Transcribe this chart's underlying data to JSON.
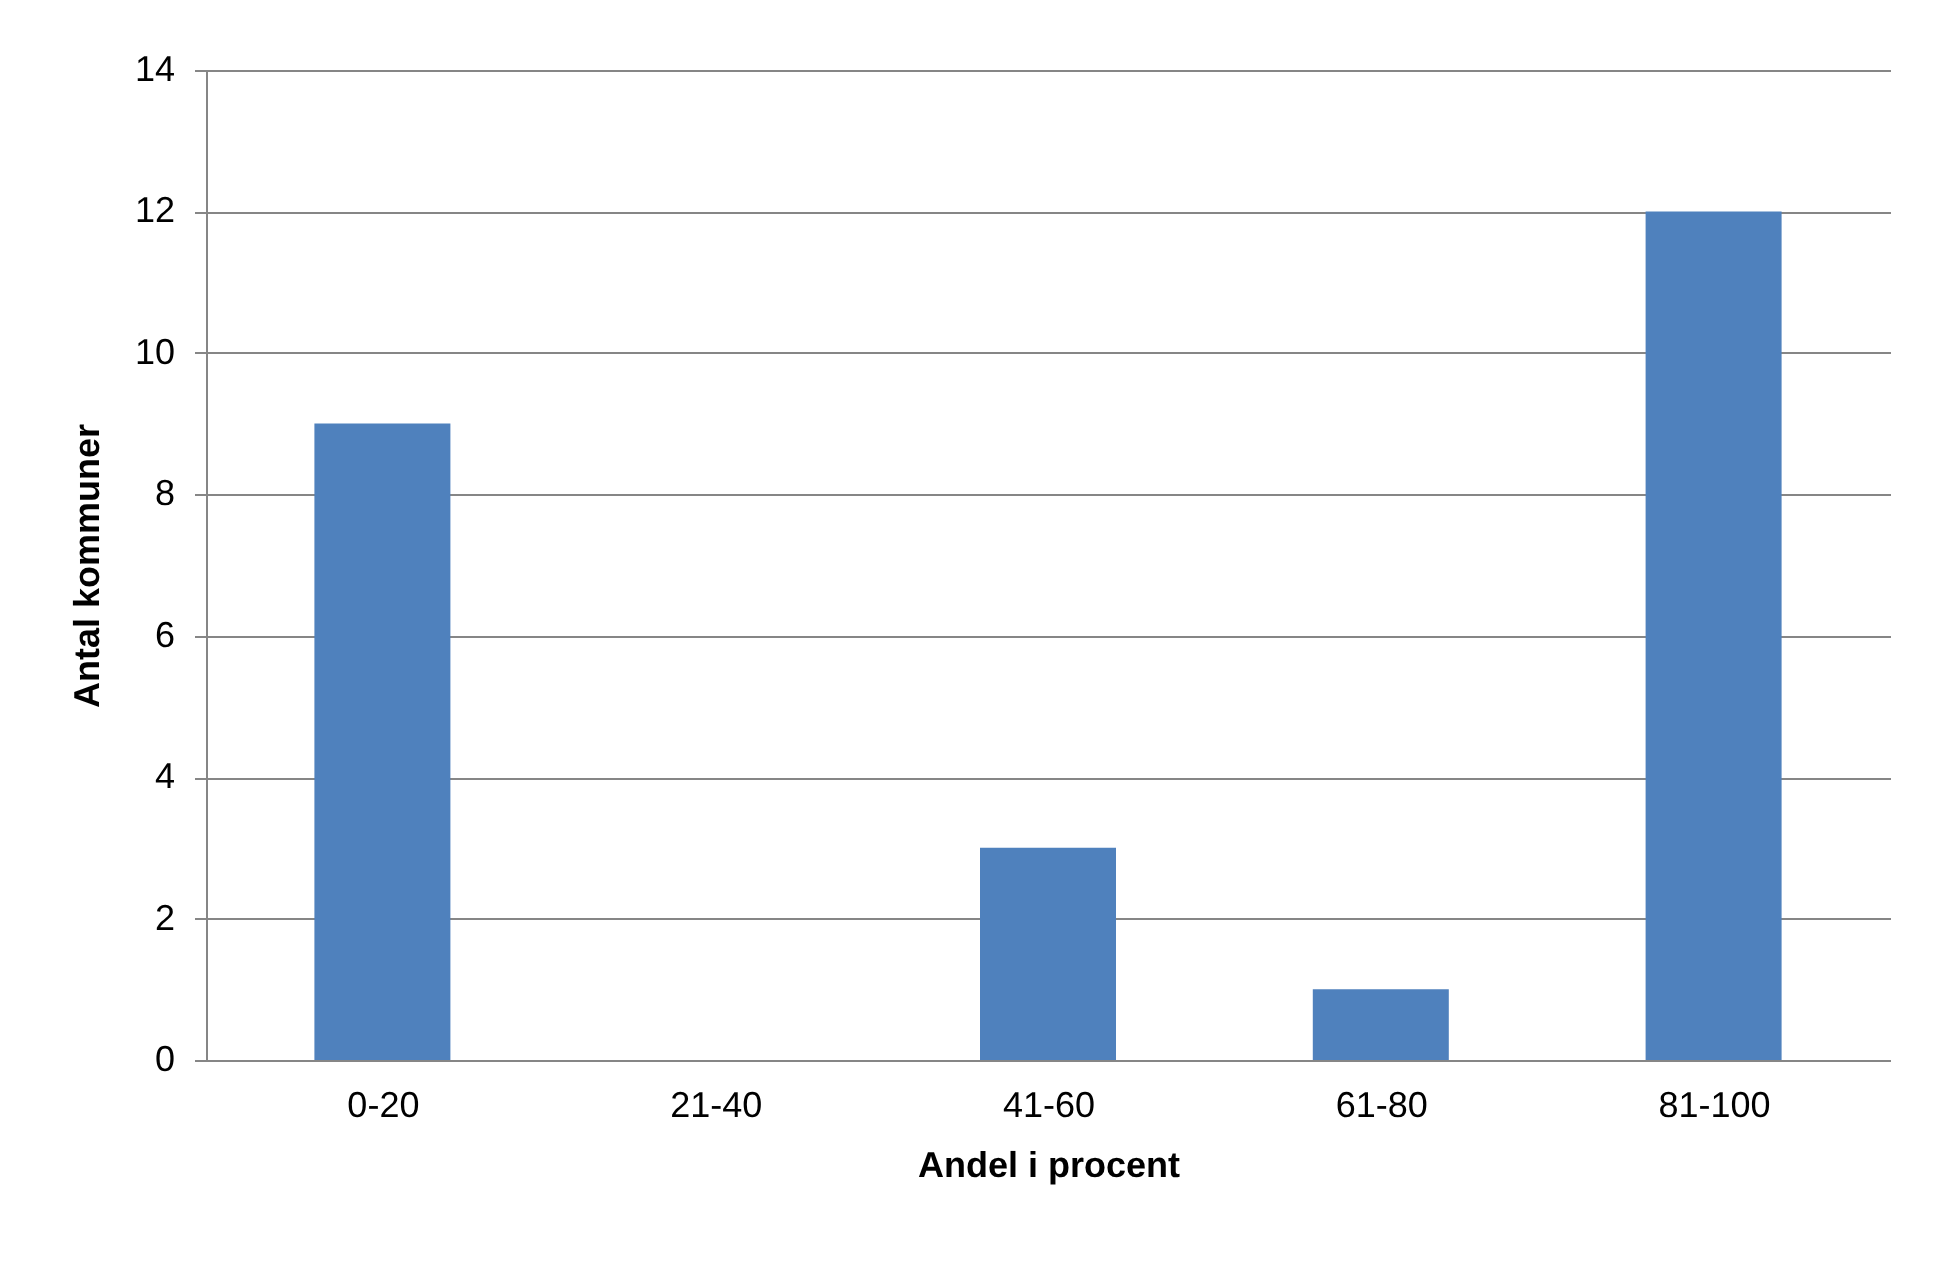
{
  "chart_data": {
    "type": "bar",
    "xlabel": "Andel i procent",
    "ylabel": "Antal kommuner",
    "categories": [
      "0-20",
      "21-40",
      "41-60",
      "61-80",
      "81-100"
    ],
    "values": [
      9,
      0,
      3,
      1,
      12
    ],
    "color": "#4f81bd",
    "ylim": [
      0,
      14
    ],
    "yticks": [
      0,
      2,
      4,
      6,
      8,
      10,
      12,
      14
    ],
    "grid": "y"
  }
}
